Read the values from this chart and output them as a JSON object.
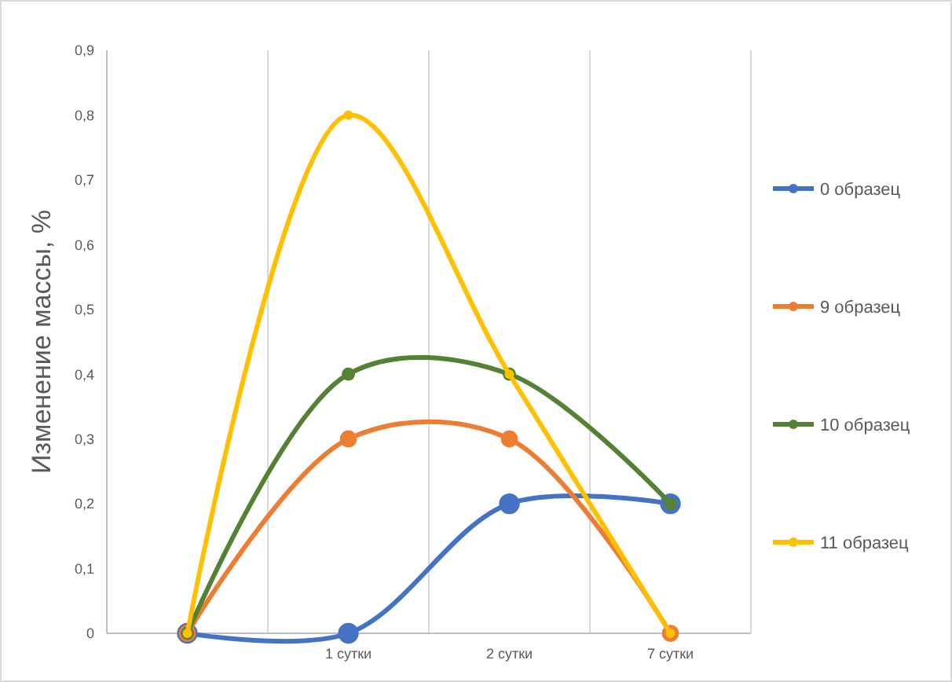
{
  "chart_data": {
    "type": "line",
    "ylabel": "Изменение массы, %",
    "categories": [
      null,
      "1 сутки",
      "2 сутки",
      "7 сутки"
    ],
    "series": [
      {
        "name": "0 образец",
        "color": "#4472c4",
        "values": [
          0,
          0,
          0.2,
          0.2
        ]
      },
      {
        "name": "9 образец",
        "color": "#ed7d31",
        "values": [
          0,
          0.3,
          0.3,
          0
        ]
      },
      {
        "name": "10 образец",
        "color": "#548235",
        "values": [
          0,
          0.4,
          0.4,
          0.2
        ]
      },
      {
        "name": "11 образец",
        "color": "#ffc000",
        "values": [
          0,
          0.8,
          0.4,
          0
        ]
      }
    ],
    "ylim": [
      0,
      0.9
    ],
    "yticks": [
      {
        "value": 0,
        "label": "0"
      },
      {
        "value": 0.1,
        "label": "0,1"
      },
      {
        "value": 0.2,
        "label": "0,2"
      },
      {
        "value": 0.3,
        "label": "0,3"
      },
      {
        "value": 0.4,
        "label": "0,4"
      },
      {
        "value": 0.5,
        "label": "0,5"
      },
      {
        "value": 0.6,
        "label": "0,6"
      },
      {
        "value": 0.7,
        "label": "0,7"
      },
      {
        "value": 0.8,
        "label": "0,8"
      },
      {
        "value": 0.9,
        "label": "0,9"
      }
    ],
    "grid": "x",
    "legend": "right",
    "marker": "circle",
    "line_style": "solid"
  }
}
